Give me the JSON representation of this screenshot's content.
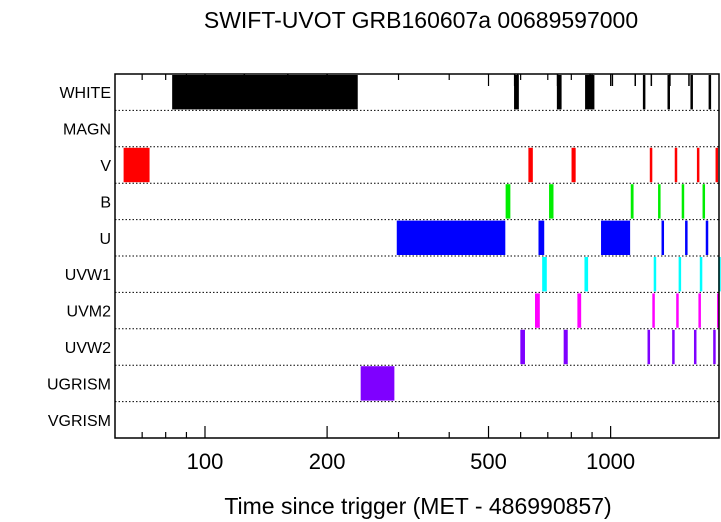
{
  "chart_data": {
    "type": "timeline",
    "title": "SWIFT-UVOT GRB160607a 00689597000",
    "xlabel": "Time since trigger (MET - 486990857)",
    "ylabel": "",
    "x_scale": "log",
    "xlim": [
      60,
      1850
    ],
    "x_ticks_major": [
      100,
      200,
      500,
      1000
    ],
    "x_tick_labels": [
      "100",
      "200",
      "500",
      "1000"
    ],
    "x_ticks_minor": [
      70,
      80,
      90,
      300,
      400,
      600,
      700,
      800,
      900
    ],
    "filters": [
      "WHITE",
      "MAGN",
      "V",
      "B",
      "U",
      "UVW1",
      "UVM2",
      "UVW2",
      "UGRISM",
      "VGRISM"
    ],
    "row_separators": "dotted",
    "series": [
      {
        "name": "WHITE",
        "color": "#000000",
        "segments": [
          [
            83,
            238
          ],
          [
            578,
            594
          ],
          [
            737,
            757
          ],
          [
            865,
            912
          ],
          [
            1201,
            1214
          ],
          [
            1381,
            1398
          ],
          [
            1573,
            1590
          ],
          [
            1744,
            1764
          ]
        ]
      },
      {
        "name": "MAGN",
        "color": "#000000",
        "segments": []
      },
      {
        "name": "V",
        "color": "#ff0000",
        "segments": [
          [
            63,
            73
          ],
          [
            627,
            643
          ],
          [
            801,
            820
          ],
          [
            1249,
            1267
          ],
          [
            1439,
            1457
          ],
          [
            1632,
            1650
          ],
          [
            1814,
            1830
          ]
        ]
      },
      {
        "name": "B",
        "color": "#00ee00",
        "segments": [
          [
            551,
            566
          ],
          [
            705,
            723
          ],
          [
            1121,
            1139
          ],
          [
            1309,
            1327
          ],
          [
            1497,
            1515
          ],
          [
            1685,
            1703
          ]
        ]
      },
      {
        "name": "U",
        "color": "#0000ff",
        "segments": [
          [
            297,
            550
          ],
          [
            664,
            686
          ],
          [
            947,
            1117
          ],
          [
            1335,
            1353
          ],
          [
            1526,
            1544
          ],
          [
            1716,
            1734
          ]
        ]
      },
      {
        "name": "UVW1",
        "color": "#00ffff",
        "segments": [
          [
            678,
            696
          ],
          [
            862,
            880
          ],
          [
            1277,
            1295
          ],
          [
            1471,
            1489
          ],
          [
            1659,
            1677
          ],
          [
            1842,
            1850
          ]
        ]
      },
      {
        "name": "UVM2",
        "color": "#ff00ff",
        "segments": [
          [
            651,
            669
          ],
          [
            828,
            846
          ],
          [
            1267,
            1285
          ],
          [
            1451,
            1469
          ],
          [
            1646,
            1664
          ],
          [
            1829,
            1847
          ]
        ]
      },
      {
        "name": "UVW2",
        "color": "#7f00ff",
        "segments": [
          [
            599,
            615
          ],
          [
            766,
            784
          ],
          [
            1233,
            1251
          ],
          [
            1418,
            1436
          ],
          [
            1605,
            1623
          ],
          [
            1790,
            1808
          ]
        ]
      },
      {
        "name": "UGRISM",
        "color": "#7f00ff",
        "segments": [
          [
            242,
            293
          ]
        ]
      },
      {
        "name": "VGRISM",
        "color": "#000000",
        "segments": []
      }
    ],
    "white_tick_marks": [
      125,
      160,
      200,
      580,
      590,
      740,
      890,
      1010,
      1150,
      1260,
      1400,
      1560
    ]
  }
}
